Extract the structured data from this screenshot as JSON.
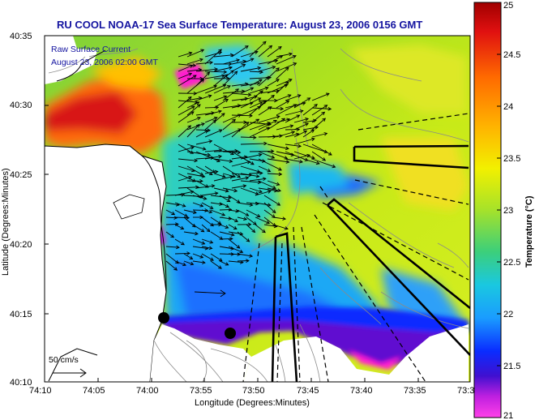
{
  "title": "RU COOL  NOAA-17  Sea Surface Temperature:  August 23, 2006 0156 GMT",
  "annotation": {
    "line1": "Raw Surface Current",
    "line2": "August 23, 2006 02:00 GMT"
  },
  "scale_bar": {
    "label": "50 cm/s"
  },
  "axes": {
    "xlabel": "Longitude (Degrees:Minutes)",
    "ylabel": "Latitude (Degrees:Minutes)",
    "x_ticks": [
      "74:10",
      "74:05",
      "74:00",
      "73:55",
      "73:50",
      "73:45",
      "73:40",
      "73:35",
      "73:3"
    ],
    "y_ticks": [
      "40:35",
      "40:30",
      "40:25",
      "40:20",
      "40:15",
      "40:10"
    ]
  },
  "colorbar": {
    "label": "Temperature (°C)",
    "ticks": [
      "25",
      "24.5",
      "24",
      "23.5",
      "23",
      "22.5",
      "22",
      "21.5",
      "21"
    ],
    "min": 21,
    "max": 25
  },
  "colors": {
    "title": "#1414a0",
    "land": "#ffffff",
    "warm": "#d42020",
    "cool": "#0a28ff",
    "cold": "#ff1fd0"
  }
}
